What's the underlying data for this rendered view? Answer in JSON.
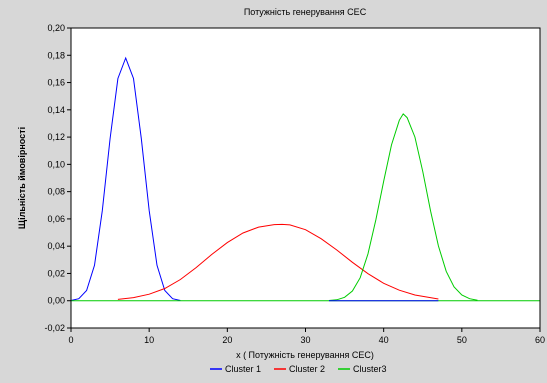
{
  "chart_data": {
    "type": "line",
    "title": "Потужність генерування СЕС",
    "xlabel": "x ( Потужність генерування СЕС)",
    "ylabel": "Щільність ймовірності",
    "xlim": [
      0,
      60
    ],
    "ylim": [
      -0.02,
      0.2
    ],
    "xticks": [
      "0",
      "10",
      "20",
      "30",
      "40",
      "50",
      "60"
    ],
    "yticks": [
      "-0,02",
      "0,00",
      "0,02",
      "0,04",
      "0,06",
      "0,08",
      "0,10",
      "0,12",
      "0,14",
      "0,16",
      "0,18",
      "0,20"
    ],
    "grid": false,
    "legend_position": "bottom",
    "series": [
      {
        "name": "Cluster 1",
        "color": "#0000ff",
        "x": [
          0,
          1,
          2,
          3,
          4,
          5,
          6,
          7,
          8,
          9,
          10,
          11,
          12,
          13,
          14
        ],
        "y": [
          0.0002,
          0.0015,
          0.0075,
          0.026,
          0.066,
          0.119,
          0.163,
          0.178,
          0.163,
          0.119,
          0.066,
          0.026,
          0.0075,
          0.0015,
          0.0002
        ]
      },
      {
        "name": "Cluster 2",
        "color": "#ff0000",
        "x": [
          6,
          8,
          10,
          12,
          14,
          16,
          18,
          20,
          22,
          24,
          26,
          27,
          28,
          30,
          32,
          34,
          36,
          38,
          40,
          42,
          44,
          47
        ],
        "y": [
          0.001,
          0.0023,
          0.0048,
          0.009,
          0.0156,
          0.0243,
          0.0339,
          0.0426,
          0.0497,
          0.054,
          0.0558,
          0.056,
          0.0556,
          0.0521,
          0.0455,
          0.0372,
          0.0282,
          0.0198,
          0.0128,
          0.0077,
          0.0042,
          0.0013
        ]
      },
      {
        "name": "Cluster3",
        "color": "#00cc00",
        "x": [
          33,
          34,
          35,
          36,
          37,
          38,
          39,
          40,
          41,
          42,
          42.5,
          43,
          44,
          45,
          46,
          47,
          48,
          49,
          50,
          51,
          52
        ],
        "y": [
          0.0002,
          0.0007,
          0.0025,
          0.0071,
          0.0169,
          0.0344,
          0.0595,
          0.0877,
          0.1143,
          0.1323,
          0.137,
          0.1343,
          0.1201,
          0.0946,
          0.0657,
          0.0402,
          0.0216,
          0.0102,
          0.0042,
          0.0015,
          0.0003
        ]
      }
    ]
  }
}
